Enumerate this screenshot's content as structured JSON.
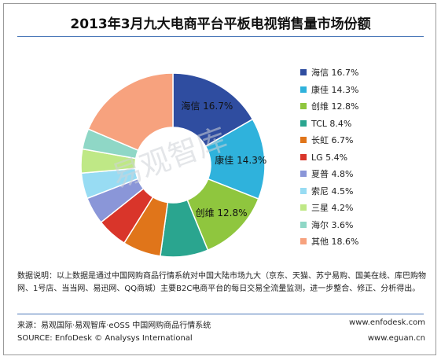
{
  "chart_data": {
    "type": "pie",
    "title": "2013年3月九大电商平台平板电视销售量市场份额",
    "donut": true,
    "legend_position": "right",
    "unit": "%",
    "categories": [
      "海信",
      "康佳",
      "创维",
      "TCL",
      "长虹",
      "LG",
      "夏普",
      "索尼",
      "三星",
      "海尔",
      "其他"
    ],
    "values": [
      16.7,
      14.3,
      12.8,
      8.4,
      6.7,
      5.4,
      4.8,
      4.5,
      4.2,
      3.6,
      18.6
    ],
    "colors": [
      "#2f4da0",
      "#2fb2dc",
      "#8fc63e",
      "#2aa58f",
      "#e0751a",
      "#d9352a",
      "#8a96d8",
      "#98dcf3",
      "#bfe886",
      "#8fd7c6",
      "#f7a27e"
    ],
    "inner_labels": [
      "海信 16.7%",
      "康佳 14.3%",
      "创维 12.8%"
    ],
    "legend": [
      "海信 16.7%",
      "康佳 14.3%",
      "创维 12.8%",
      "TCL 8.4%",
      "长虹 6.7%",
      "LG 5.4%",
      "夏普 4.8%",
      "索尼 4.5%",
      "三星 4.2%",
      "海尔 3.6%",
      "其他 18.6%"
    ]
  },
  "watermark": "易观智库",
  "note_text": "数据说明：以上数据是通过中国网购商品行情系统对中国大陆市场九大（京东、天猫、苏宁易购、国美在线、库巴购物网、1号店、当当网、易迅网、QQ商城）主要B2C电商平台的每日交易全流量监测，进一步整合、修正、分析得出。",
  "footer": {
    "source_cn": "来源：易观国际·易观智库·eOSS 中国网购商品行情系统",
    "source_en": "SOURCE: EnfoDesk © Analysys International",
    "url_1": "www.enfodesk.com",
    "url_2": "www.eguan.cn"
  }
}
